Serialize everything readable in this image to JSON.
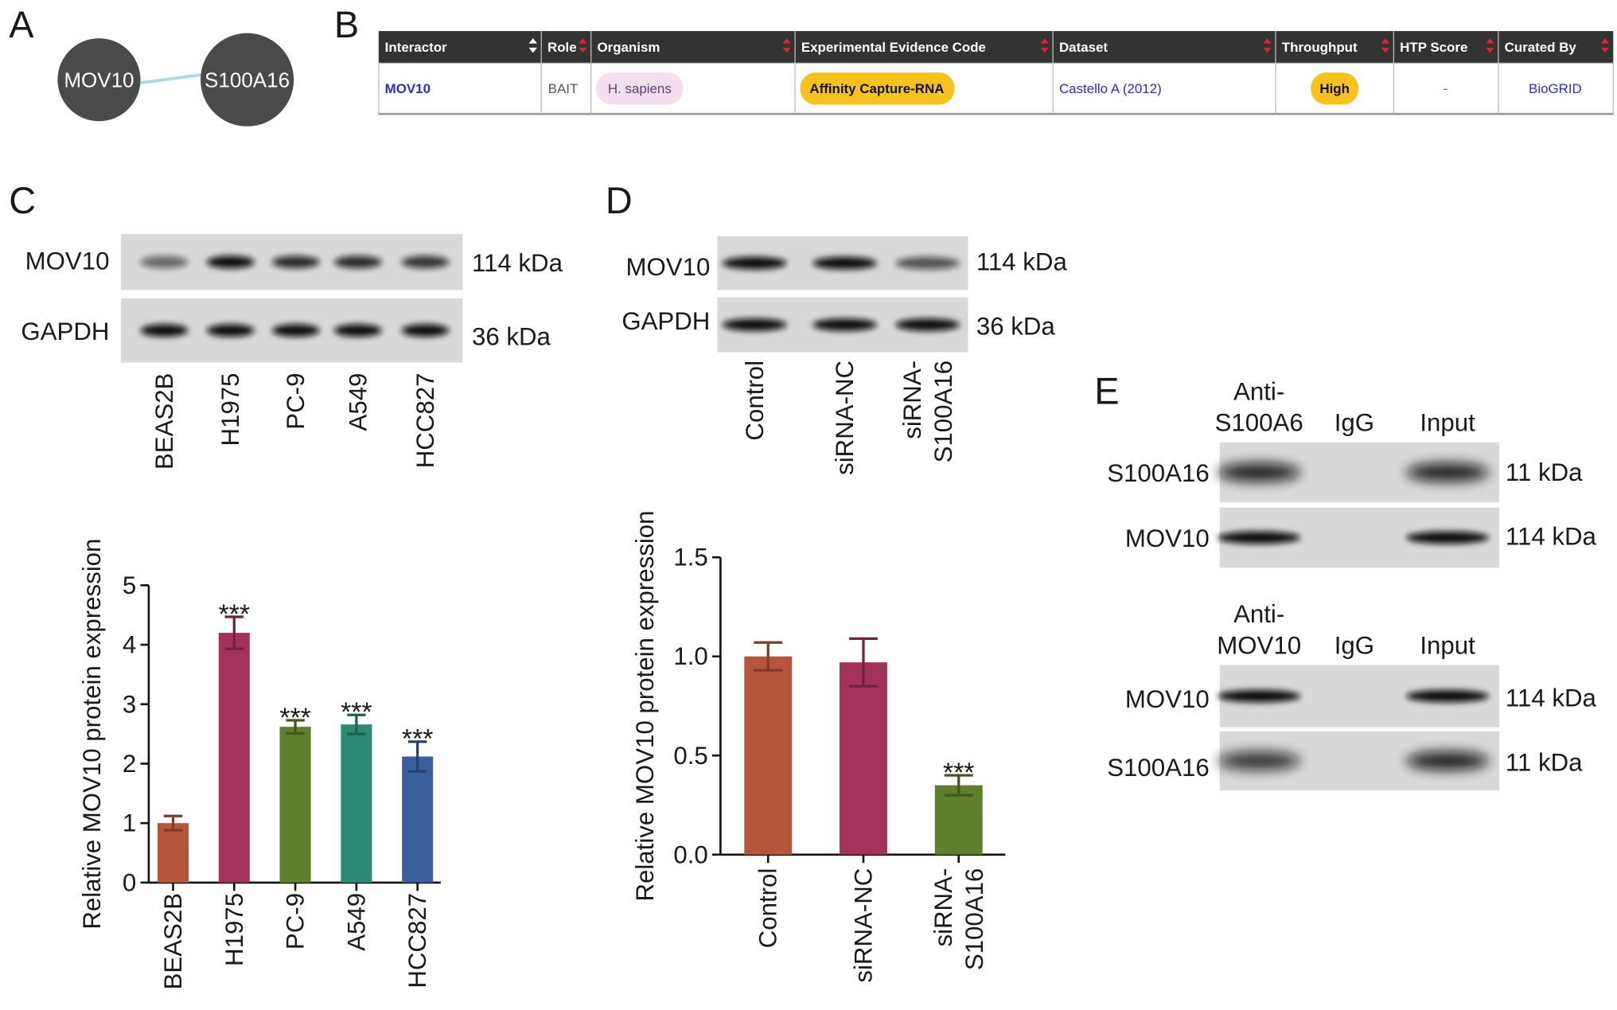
{
  "panel_labels": [
    "A",
    "B",
    "C",
    "D",
    "E"
  ],
  "network": {
    "nodes": [
      "MOV10",
      "S100A16"
    ]
  },
  "table": {
    "headers": [
      "Interactor",
      "Role",
      "Organism",
      "Experimental Evidence Code",
      "Dataset",
      "Throughput",
      "HTP Score",
      "Curated By"
    ],
    "rows": [
      [
        "MOV10",
        "BAIT",
        "H. sapiens",
        "Affinity Capture-RNA",
        "Castello A (2012)",
        "High",
        "-",
        "BioGRID"
      ]
    ]
  },
  "blot_c": {
    "rows": [
      {
        "label": "MOV10",
        "size": "114 kDa"
      },
      {
        "label": "GAPDH",
        "size": "36 kDa"
      }
    ],
    "lanes": [
      "BEAS2B",
      "H1975",
      "PC-9",
      "A549",
      "HCC827"
    ]
  },
  "blot_d": {
    "rows": [
      {
        "label": "MOV10",
        "size": "114 kDa"
      },
      {
        "label": "GAPDH",
        "size": "36 kDa"
      }
    ],
    "lanes": [
      "Control",
      "siRNA-NC",
      "siRNA-\nS100A16"
    ]
  },
  "coip_e": [
    {
      "lanes": [
        "Anti-\nS100A6",
        "IgG",
        "Input"
      ],
      "rows": [
        {
          "label": "S100A16",
          "size": "11 kDa"
        },
        {
          "label": "MOV10",
          "size": "114 kDa"
        }
      ]
    },
    {
      "lanes": [
        "Anti-\nMOV10",
        "IgG",
        "Input"
      ],
      "rows": [
        {
          "label": "MOV10",
          "size": "114 kDa"
        },
        {
          "label": "S100A16",
          "size": "11 kDa"
        }
      ]
    }
  ],
  "chart_data": [
    {
      "type": "bar",
      "ylabel": "Relative MOV10 protein expression",
      "categories": [
        "BEAS2B",
        "H1975",
        "PC-9",
        "A549",
        "HCC827"
      ],
      "values": [
        1.0,
        4.2,
        2.62,
        2.66,
        2.12
      ],
      "errors": [
        0.12,
        0.27,
        0.11,
        0.16,
        0.25
      ],
      "colors": [
        "#b5553a",
        "#a3315a",
        "#5e7f2b",
        "#2a8a72",
        "#3a5f9c"
      ],
      "annotations": [
        null,
        "***",
        "***",
        "***",
        "***"
      ],
      "ylim": [
        0,
        5
      ],
      "yticks": [
        0,
        1,
        2,
        3,
        4,
        5
      ]
    },
    {
      "type": "bar",
      "ylabel": "Relative MOV10 protein expression",
      "categories": [
        "Control",
        "siRNA-NC",
        "siRNA-\nS100A16"
      ],
      "values": [
        1.0,
        0.97,
        0.35
      ],
      "errors": [
        0.07,
        0.12,
        0.05
      ],
      "colors": [
        "#b5553a",
        "#a3315a",
        "#5e7f2b"
      ],
      "annotations": [
        null,
        null,
        "***"
      ],
      "ylim": [
        0,
        1.5
      ],
      "yticks": [
        {
          "value": 0,
          "label": "0.0"
        },
        0.5,
        {
          "value": 1,
          "label": "1.0"
        },
        {
          "value": 1.5,
          "label": "1.5"
        }
      ]
    }
  ]
}
